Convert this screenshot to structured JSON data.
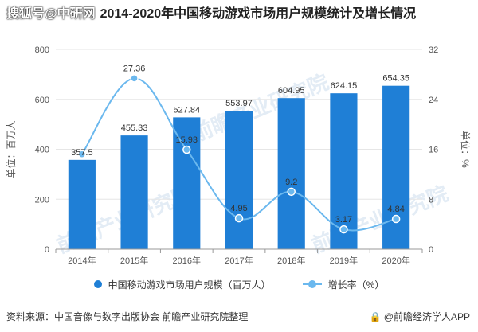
{
  "header": {
    "watermark": "搜狐号@中研网",
    "title": "2014-2020年中国移动游戏市场用户规模统计及增长情况"
  },
  "footer": {
    "source": "资料来源：中国音像与数字出版协会 前瞻产业研究院整理",
    "brand": "@前瞻经济学人APP",
    "lock_icon": "lock-icon"
  },
  "watermarks": [
    "前瞻产业研究院",
    "前瞻产业研究院",
    "前瞻产业研究院"
  ],
  "colors": {
    "bar": "#1f7fd6",
    "line": "#6bb8ee",
    "grid": "#e6e6e6"
  },
  "chart_data": {
    "type": "bar",
    "categories": [
      "2014年",
      "2015年",
      "2016年",
      "2017年",
      "2018年",
      "2019年",
      "2020年"
    ],
    "series": [
      {
        "name": "中国移动游戏市场用户规模（百万人）",
        "type": "bar",
        "axis": "left",
        "values": [
          357.5,
          455.33,
          527.84,
          553.97,
          604.95,
          624.15,
          654.35
        ]
      },
      {
        "name": "增长率（%）",
        "type": "line",
        "axis": "right",
        "values": [
          15.2,
          27.36,
          15.93,
          4.95,
          9.2,
          3.17,
          4.84
        ],
        "labels": [
          "",
          "27.36",
          "15.93",
          "4.95",
          "9.2",
          "3.17",
          "4.84"
        ]
      }
    ],
    "ylabel": "单位：百万人",
    "y2label": "单位：%",
    "ylim": [
      0,
      800
    ],
    "yticks": [
      0,
      200,
      400,
      600,
      800
    ],
    "y2lim": [
      0,
      32
    ],
    "y2ticks": [
      0,
      8,
      16,
      24,
      32
    ],
    "grid": true,
    "legend": "bottom"
  }
}
